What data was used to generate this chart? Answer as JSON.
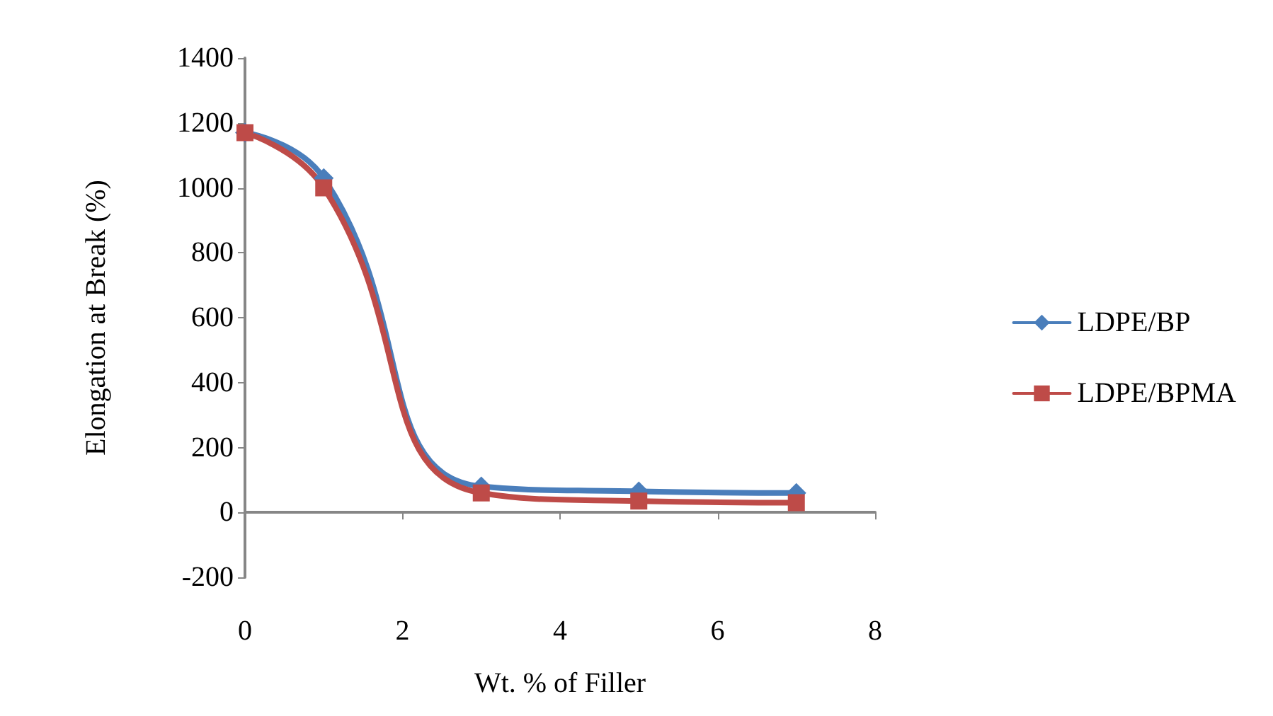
{
  "chart_data": {
    "type": "line",
    "xlabel": "Wt. % of Filler",
    "ylabel": "Elongation at Break (%)",
    "x": [
      0,
      1,
      3,
      5,
      7
    ],
    "series": [
      {
        "name": "LDPE/BP",
        "color": "#4a7ebb",
        "marker": "diamond",
        "values": [
          1170,
          1030,
          80,
          65,
          60
        ]
      },
      {
        "name": "LDPE/BPMA",
        "color": "#be4b48",
        "marker": "square",
        "values": [
          1170,
          1000,
          60,
          35,
          30
        ]
      }
    ],
    "xlim": [
      0,
      8
    ],
    "xticks": [
      0,
      2,
      4,
      6,
      8
    ],
    "ylim": [
      -200,
      1400
    ],
    "yticks": [
      -200,
      0,
      200,
      400,
      600,
      800,
      1000,
      1200,
      1400
    ],
    "legend": "right",
    "line_style": "solid"
  }
}
